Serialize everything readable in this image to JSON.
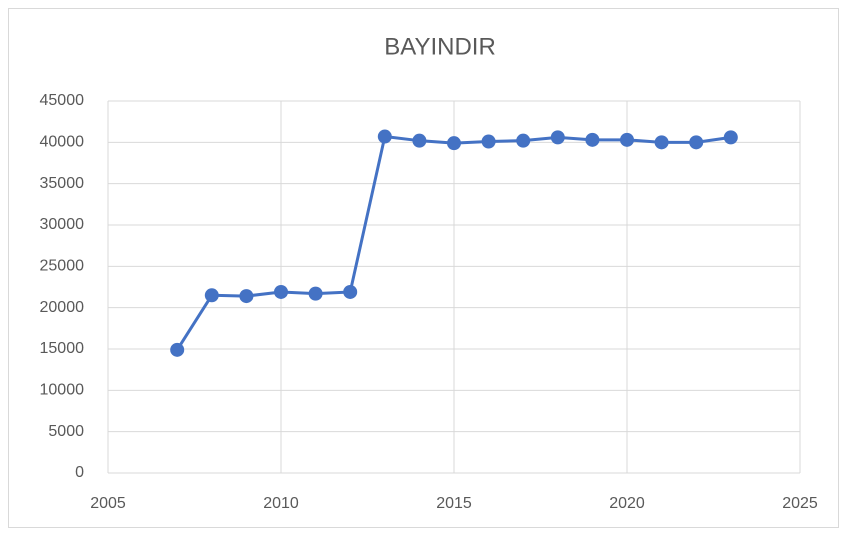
{
  "chart_data": {
    "type": "line",
    "title": "BAYINDIR",
    "x": [
      2007,
      2008,
      2009,
      2010,
      2011,
      2012,
      2013,
      2014,
      2015,
      2016,
      2017,
      2018,
      2019,
      2020,
      2021,
      2022,
      2023
    ],
    "series": [
      {
        "name": "BAYINDIR",
        "color": "#4472c4",
        "values": [
          14900,
          21500,
          21400,
          21900,
          21700,
          21900,
          40700,
          40200,
          39900,
          40100,
          40200,
          40600,
          40300,
          40300,
          40000,
          40000,
          40600
        ]
      }
    ],
    "xlim": [
      2005,
      2025
    ],
    "xticks": [
      2005,
      2010,
      2015,
      2020,
      2025
    ],
    "ylim": [
      0,
      45000
    ],
    "yticks": [
      0,
      5000,
      10000,
      15000,
      20000,
      25000,
      30000,
      35000,
      40000,
      45000
    ],
    "grid": true
  }
}
